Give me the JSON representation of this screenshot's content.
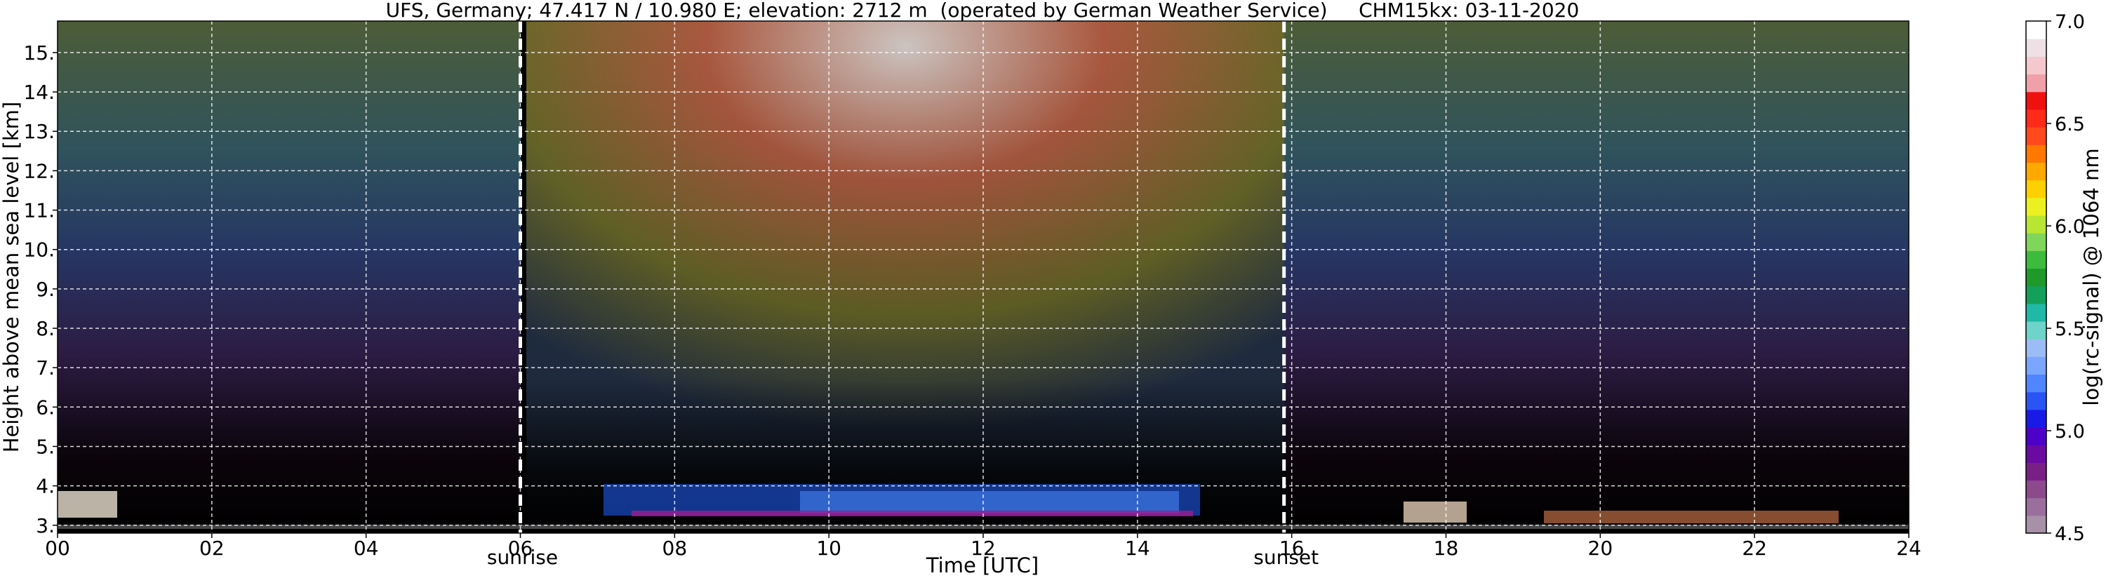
{
  "chart_data": {
    "type": "heatmap",
    "title": "UFS, Germany; 47.417 N / 10.980 E; elevation: 2712 m  (operated by German Weather Service)     CHM15kx: 03-11-2020",
    "xlabel": "Time [UTC]",
    "ylabel": "Height above mean sea level [km]",
    "xlim": [
      0,
      24
    ],
    "ylim": [
      2.8,
      15.8
    ],
    "x_ticks": [
      "00",
      "02",
      "04",
      "06",
      "08",
      "10",
      "12",
      "14",
      "16",
      "18",
      "20",
      "22",
      "24"
    ],
    "y_ticks": [
      "3.",
      "4.",
      "5.",
      "6.",
      "7.",
      "8.",
      "9.",
      "10.",
      "11.",
      "12.",
      "13.",
      "14.",
      "15."
    ],
    "grid": true,
    "background": "#000000",
    "markers": [
      {
        "label": "sunrise",
        "x": 6.0
      },
      {
        "label": "sunset",
        "x": 15.9
      }
    ],
    "colorbar": {
      "label": "log(rc-signal) @ 1064 nm",
      "range": [
        4.5,
        7.0
      ],
      "ticks": [
        "4.5",
        "5.0",
        "5.5",
        "6.0",
        "6.5",
        "7.0"
      ],
      "colors": [
        "#a890a8",
        "#9a6f9e",
        "#8c4a8c",
        "#7a1f86",
        "#6a0aa0",
        "#4d00c8",
        "#1a1ae6",
        "#2b54f5",
        "#4f86ff",
        "#7aa6ff",
        "#9cbcf5",
        "#6ed3c8",
        "#20b8a6",
        "#14a05a",
        "#1f9a2a",
        "#3dbb3d",
        "#7fd65a",
        "#b8e632",
        "#ecf020",
        "#ffd000",
        "#ffa800",
        "#ff7800",
        "#ff4a1e",
        "#ff2a1a",
        "#f01010",
        "#f0a0a8",
        "#f4c8cc",
        "#eee0e4",
        "#ffffff"
      ]
    }
  }
}
